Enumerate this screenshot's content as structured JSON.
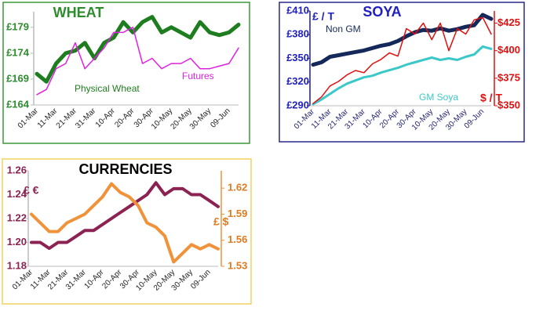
{
  "chart_data": [
    {
      "type": "line",
      "title": "WHEAT",
      "categories": [
        "01-Mar",
        null,
        "11-Mar",
        null,
        "21-Mar",
        null,
        "31-Mar",
        null,
        "10-Apr",
        null,
        "20-Apr",
        null,
        "30-Apr",
        null,
        "10-May",
        null,
        "20-May",
        null,
        "30-May",
        null,
        "09-Jun",
        null
      ],
      "series": [
        {
          "name": "Physical Wheat",
          "color": "#1e7d1e",
          "values": [
            170,
            168.5,
            172,
            174,
            174.5,
            176,
            173,
            176,
            177,
            180,
            178,
            180,
            181,
            178,
            179,
            178,
            177,
            180,
            178,
            177.5,
            178,
            179.5
          ]
        },
        {
          "name": "Futures",
          "color": "#e020e0",
          "values": [
            166,
            167,
            171,
            172,
            176,
            171,
            173,
            175,
            178,
            178,
            179,
            172,
            173,
            171,
            172,
            172,
            173,
            171,
            171,
            171.5,
            172,
            175
          ]
        }
      ],
      "ylim": [
        164,
        182
      ],
      "yticks": [
        {
          "value": 164,
          "label": "£164"
        },
        {
          "value": 169,
          "label": "£169"
        },
        {
          "value": 174,
          "label": "£174"
        },
        {
          "value": 179,
          "label": "£179"
        }
      ]
    },
    {
      "type": "line",
      "title": "SOYA",
      "categories": [
        "01-Mar",
        null,
        "11-Mar",
        null,
        "21-Mar",
        null,
        "31-Mar",
        null,
        "10-Apr",
        null,
        "20-Apr",
        null,
        "30-Apr",
        null,
        "10-May",
        null,
        "20-May",
        null,
        "30-May",
        null,
        "09-Jun",
        null
      ],
      "series": [
        {
          "name": "Non GM",
          "color": "#14285a",
          "values": [
            342,
            345,
            352,
            354,
            356,
            358,
            360,
            363,
            366,
            368,
            372,
            378,
            383,
            386,
            385,
            388,
            385,
            387,
            390,
            392,
            405,
            400
          ]
        },
        {
          "name": "GM Soya",
          "color": "#3cc8c8",
          "values": [
            292,
            298,
            305,
            312,
            318,
            322,
            326,
            328,
            332,
            335,
            338,
            342,
            345,
            348,
            351,
            348,
            350,
            348,
            352,
            355,
            365,
            362
          ]
        },
        {
          "color": "#e01010",
          "axis": "y2",
          "values": [
            352,
            358,
            368,
            372,
            378,
            382,
            380,
            388,
            392,
            398,
            395,
            420,
            415,
            425,
            410,
            425,
            400,
            420,
            415,
            428,
            430,
            415
          ]
        }
      ],
      "annotations": [
        "£ / T",
        "$ / T"
      ],
      "ylim": [
        290,
        410
      ],
      "yticks": [
        {
          "value": 290,
          "label": "£290"
        },
        {
          "value": 320,
          "label": "£320"
        },
        {
          "value": 350,
          "label": "£350"
        },
        {
          "value": 380,
          "label": "£380"
        },
        {
          "value": 410,
          "label": "£410"
        }
      ],
      "y2lim": [
        350,
        436
      ],
      "y2ticks": [
        {
          "value": 350,
          "label": "$350"
        },
        {
          "value": 375,
          "label": "$375"
        },
        {
          "value": 400,
          "label": "$400"
        },
        {
          "value": 425,
          "label": "$425"
        }
      ]
    },
    {
      "type": "line",
      "title": "CURRENCIES",
      "categories": [
        "01-Mar",
        null,
        "11-Mar",
        null,
        "21-Mar",
        null,
        "31-Mar",
        null,
        "10-Apr",
        null,
        "20-Apr",
        null,
        "30-Apr",
        null,
        "10-May",
        null,
        "20-May",
        null,
        "30-May",
        null,
        "09-Jun",
        null
      ],
      "series": [
        {
          "color": "#8b2252",
          "values": [
            1.2,
            1.2,
            1.195,
            1.2,
            1.2,
            1.205,
            1.21,
            1.21,
            1.215,
            1.22,
            1.225,
            1.23,
            1.235,
            1.24,
            1.25,
            1.24,
            1.245,
            1.245,
            1.24,
            1.24,
            1.235,
            1.23
          ]
        },
        {
          "color": "#f0923a",
          "axis": "y2",
          "values": [
            1.59,
            1.58,
            1.57,
            1.57,
            1.58,
            1.585,
            1.59,
            1.6,
            1.61,
            1.625,
            1.615,
            1.61,
            1.6,
            1.58,
            1.575,
            1.565,
            1.535,
            1.545,
            1.555,
            1.55,
            1.555,
            1.55
          ]
        }
      ],
      "annotations": [
        "£ €",
        "£ $"
      ],
      "ylim": [
        1.18,
        1.26
      ],
      "yticks": [
        1.18,
        {
          "value": 1.2,
          "label": "1.20"
        },
        1.22,
        1.24,
        1.26
      ],
      "y2lim": [
        1.53,
        1.64
      ],
      "y2ticks": [
        1.53,
        1.56,
        1.59,
        1.62
      ]
    }
  ]
}
